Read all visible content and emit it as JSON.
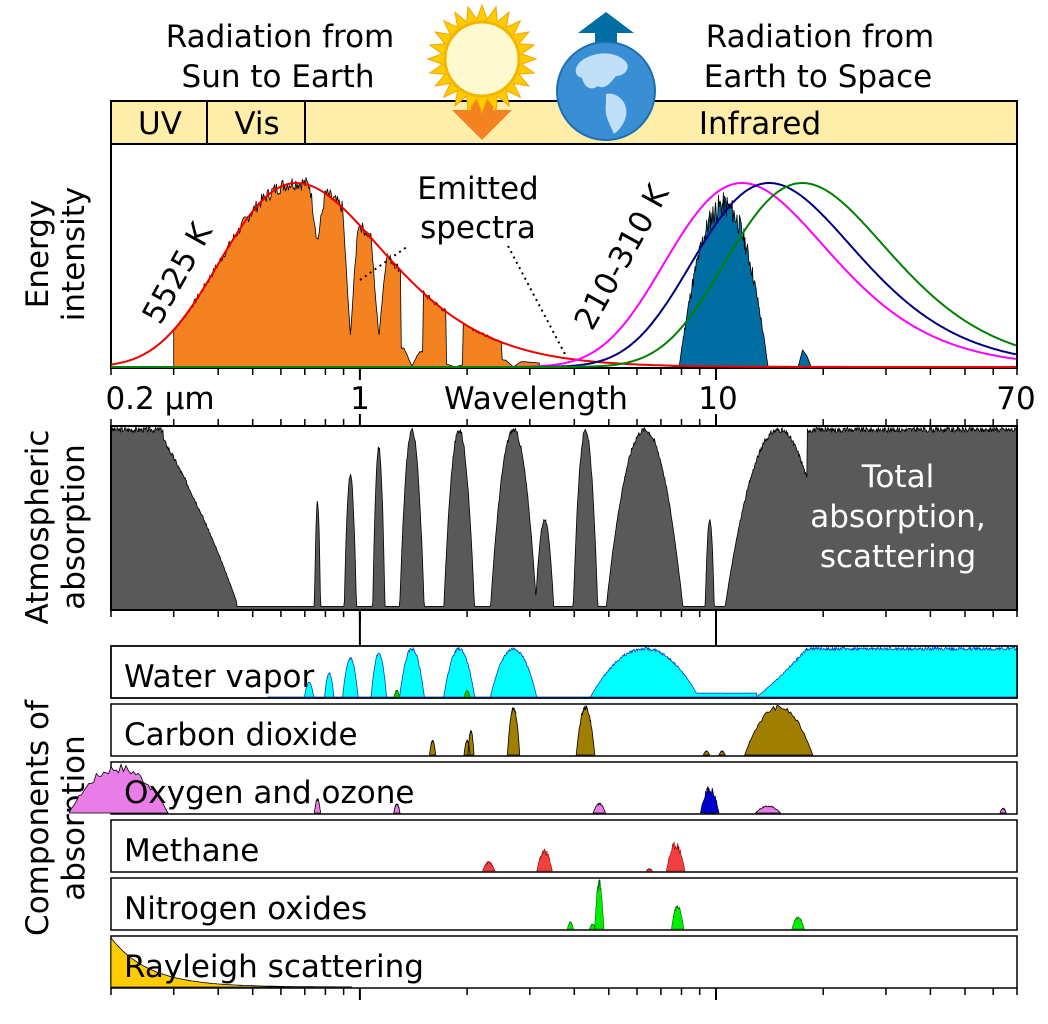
{
  "header": {
    "sun_caption": [
      "Radiation from",
      "Sun to Earth"
    ],
    "earth_caption": [
      "Radiation from",
      "Earth to Space"
    ],
    "bands": [
      "UV",
      "Vis",
      "Infrared"
    ]
  },
  "spectrum_panel": {
    "y_label": [
      "Energy",
      "intensity"
    ],
    "sun_temp": "5525 K",
    "earth_temp": "210-310 K",
    "note": [
      "Emitted",
      "spectra"
    ]
  },
  "axis": {
    "ticks": [
      "0.2 µm",
      "1",
      "10",
      "70"
    ],
    "title": "Wavelength"
  },
  "absorption_panel": {
    "y_label": [
      "Atmospheric",
      "absorption"
    ],
    "note": [
      "Total",
      "absorption,",
      "scattering"
    ]
  },
  "components": {
    "y_label": [
      "Components of",
      "absorption"
    ],
    "rows": [
      "Water vapor",
      "Carbon dioxide",
      "Oxygen and ozone",
      "Methane",
      "Nitrogen oxides",
      "Rayleigh scattering"
    ]
  },
  "colors": {
    "band_bar": "#ffeeaa",
    "sun_spectrum": "#f58220",
    "earth_spectrum": "#006da3",
    "absorption": "#595959",
    "water": "#00ffff",
    "co2": "#a07f00",
    "oxygen": "#e87de8",
    "ozone": "#0000cc",
    "methane": "#f04040",
    "nox": "#00ee00",
    "rayleigh": "#ffcc00",
    "curve_5525": "#ee0000",
    "curve_mid": "#000080",
    "curve_hot": "#ff00ff",
    "curve_cold": "#008000"
  }
}
